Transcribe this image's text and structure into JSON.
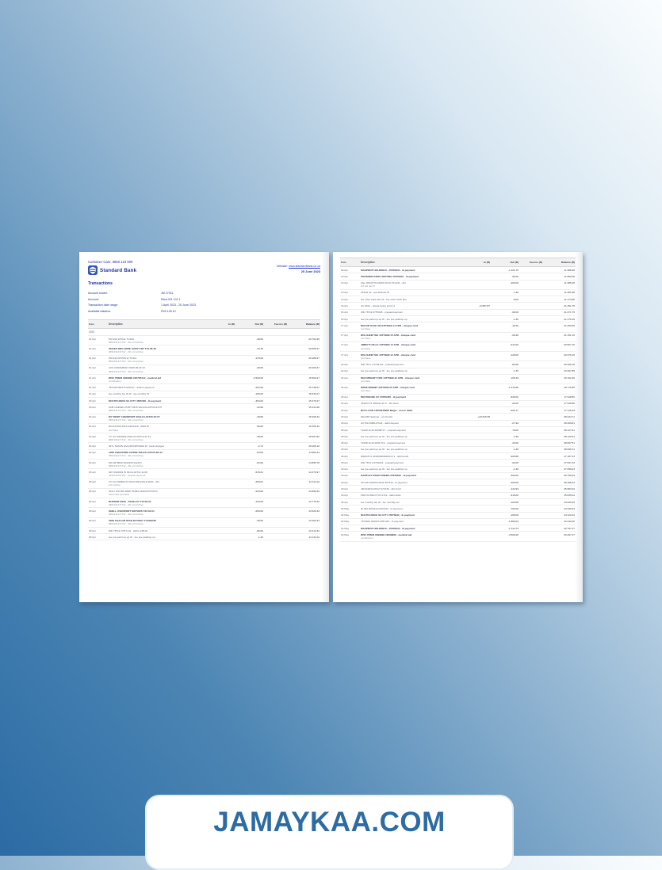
{
  "watermark": {
    "text": "JAMAYKAA.COM",
    "color": "#2d6ca3"
  },
  "statement": {
    "customer_care": "Customer Care: 0860 123 000",
    "bank_name": "Standard Bank",
    "brand_blue": "#1f2f9e",
    "website_label": "Website:",
    "website_url": "www.standardbank.co.za",
    "statement_date": "25 June 2023",
    "section_title": "Transactions",
    "summary": [
      {
        "label": "Account holder:",
        "value": "JM 27011"
      },
      {
        "label": "Account:",
        "value": "Mica 001 101 1"
      },
      {
        "label": "Transaction date range:",
        "value": "1 April 2023 - 25 June 2023"
      },
      {
        "label": "Available balance:",
        "value": "R49 128.10"
      }
    ],
    "columns": {
      "date": "Date",
      "description": "Description",
      "in": "In (R)",
      "out": "Out (R)",
      "fees": "Fee ins (R)",
      "balance": "Balance (R)"
    },
    "year_marker": "2023",
    "pages": [
      {
        "rows": [
          {
            "date": "01 Apr",
            "desc": "PAY910 W7041 T/1910",
            "ref": "0861231171712 - dbt ord archive",
            "in": "",
            "out": "-48.00",
            "fees": "",
            "balance": "20 702.45",
            "bold": false
          },
          {
            "date": "01 Apr",
            "desc": "SHOES WELCOME CONV CNT T13.38.49",
            "ref": "0861231171712 - dbt ord archive",
            "in": "",
            "out": "-44.18",
            "fees": "",
            "balance": "20 658.27",
            "bold": true
          },
          {
            "date": "01 Apr",
            "desc": "PAY211 PAYMA W T/1111",
            "ref": "0861231171712 - dbt ord archive",
            "in": "",
            "out": "-170.00",
            "fees": "",
            "balance": "20 488.27",
            "bold": false
          },
          {
            "date": "01 Apr",
            "desc": "AVC UNIMARKET 0915 09:42:10",
            "ref": "0861231171712 - dbt ord archive",
            "in": "",
            "out": "-28.00",
            "fees": "",
            "balance": "20 460.27",
            "bold": false
          },
          {
            "date": "01 Apr",
            "desc": "DISC PREM 9099999 190787312 - medical aid",
            "ref": "contribution",
            "in": "",
            "out": "-4 500.00",
            "fees": "",
            "balance": "15 960.27",
            "bold": true
          },
          {
            "date": "01 Apr",
            "desc": "787128 090173 029747 - airtime payment",
            "ref": "",
            "in": "",
            "out": "-222.00",
            "fees": "",
            "balance": "15 738.27",
            "bold": false
          },
          {
            "date": "01 Apr",
            "desc": "fee monthly fee W W - fee monthly W",
            "ref": "",
            "in": "",
            "out": "-105.00",
            "fees": "",
            "balance": "15 633.27",
            "bold": false
          },
          {
            "date": "03 Apr",
            "desc": "MULTICHOICE SA CITY 4605400 - ib payment",
            "ref": "",
            "in": "",
            "out": "-354.00",
            "fees": "",
            "balance": "15 279.27",
            "bold": true
          },
          {
            "date": "03 Apr",
            "desc": "SUB UNIFIED PORT 0915 2019-04-03T20:43:07",
            "ref": "0861231171712 - dbt ord archive",
            "in": "",
            "out": "-44.99",
            "fees": "",
            "balance": "15 234.28",
            "bold": false
          },
          {
            "date": "04 Apr",
            "desc": "MY DEBIT CHEWPORT 2019-04-04T20:43:07",
            "ref": "0861231171712 - dbt ord archive",
            "in": "",
            "out": "-28.86",
            "fees": "",
            "balance": "15 205.42",
            "bold": true
          },
          {
            "date": "04 Apr",
            "desc": "RG110 068 4410-249-0419 - 0915 W",
            "ref": "purchase",
            "in": "",
            "out": "-99.00",
            "fees": "",
            "balance": "15 106.42",
            "bold": false
          },
          {
            "date": "04 Apr",
            "desc": "TV LIC 0919090 2019-04-04T14:12:11",
            "ref": "0861231171712 - dbt ord archive",
            "in": "",
            "out": "-38.60",
            "fees": "",
            "balance": "15 067.82",
            "bold": false
          },
          {
            "date": "04 Apr",
            "desc": "INTL TRANS FAAU105487/9400 W - bank charges",
            "ref": "",
            "in": "",
            "out": "-2.72",
            "fees": "",
            "balance": "15 065.10",
            "bold": false
          },
          {
            "date": "04 Apr",
            "desc": "1008 CHECKERS CNTRE 2019-04-04T20:48:44",
            "ref": "0861231171712 - dbt ord archive",
            "in": "",
            "out": "-84.66",
            "fees": "",
            "balance": "14 980.44",
            "bold": true
          },
          {
            "date": "04 Apr",
            "desc": "MC 0879000 09443/07142107",
            "ref": "0861231171712 - dbt ord archive",
            "in": "",
            "out": "-84.66",
            "fees": "",
            "balance": "14 895.78",
            "bold": false
          },
          {
            "date": "05 Apr",
            "desc": "GPI 0494049 W 09-04-04T11:12:09",
            "ref": "4199722707101 - deposit payment",
            "in": "",
            "out": "-515.81",
            "fees": "",
            "balance": "14 379.97",
            "bold": false
          },
          {
            "date": "05 Apr",
            "desc": "TV LIC 090904 07:04:04 #9121012/10/11 - dbt",
            "ref": "ord archive",
            "in": "",
            "out": "-265.81",
            "fees": "",
            "balance": "14 114.16",
            "bold": false
          },
          {
            "date": "05 Apr",
            "desc": "ONLY FOODS 9090 70/040 4199722707070 -",
            "ref": "debit card purchase",
            "in": "",
            "out": "-223.82",
            "fees": "",
            "balance": "13 890.34",
            "bold": false
          },
          {
            "date": "05 Apr",
            "desc": "BURGER KING - PAVILLIO T19:04:01",
            "ref": "0861231171712 - dbt ord archive",
            "in": "",
            "out": "-120.00",
            "fees": "",
            "balance": "13 770.34",
            "bold": true
          },
          {
            "date": "05 Apr",
            "desc": "SHELL OVERPORT MOTORS T20:34:01",
            "ref": "0861231171712 - dbt ord archive",
            "in": "",
            "out": "-250.00",
            "fees": "",
            "balance": "13 520.34",
            "bold": true
          },
          {
            "date": "05 Apr",
            "desc": "0008 CHALOR STAR DAYWAY TUCKEND",
            "ref": "0861231171712 - dbt ord archive",
            "in": "",
            "out": "-28.00",
            "fees": "",
            "balance": "13 492.34",
            "bold": true
          },
          {
            "date": "08 Apr",
            "desc": "WD 7871C 075-0-01 - #101 0 #8-#1",
            "ref": "",
            "in": "",
            "out": "-80.00",
            "fees": "",
            "balance": "13 412.34",
            "bold": false
          },
          {
            "date": "08 Apr",
            "desc": "fee pre-paid top-up W - fee pre-paid/top up",
            "ref": "",
            "in": "",
            "out": "-1.30",
            "fees": "",
            "balance": "13 411.04",
            "bold": false
          }
        ]
      },
      {
        "rows": [
          {
            "date": "09 Apr",
            "desc": "MAXPROP HOLDINGS - #567894# - ib payment",
            "ref": "",
            "in": "",
            "out": "-1 422.76",
            "fees": "",
            "balance": "11 988.28",
            "bold": true
          },
          {
            "date": "10 Apr",
            "desc": "CROSSDICATED HOSTING #567894# - ib payment",
            "ref": "",
            "in": "",
            "out": "-99.00",
            "fees": "",
            "balance": "11 889.28",
            "bold": true
          },
          {
            "date": "10 Apr",
            "desc": "Also 0644/1719 0915 09:10 4714/11 - dbt",
            "ref": "ord del del W",
            "in": "",
            "out": "-400.00",
            "fees": "",
            "balance": "11 489.28",
            "bold": false
          },
          {
            "date": "13 Apr",
            "desc": "021111 W - aut abstract W",
            "ref": "",
            "in": "",
            "out": "-7.40",
            "fees": "",
            "balance": "11 481.88",
            "bold": false
          },
          {
            "date": "13 Apr",
            "desc": "fee other bank abs W - fee other bank abs",
            "ref": "",
            "in": "",
            "out": "-8.00",
            "fees": "",
            "balance": "11 473.88",
            "bold": false
          },
          {
            "date": "16 Apr",
            "desc": "UC 0911 - rebate being sprint 4",
            "ref": "",
            "in": "+9 887.87",
            "out": "",
            "fees": "",
            "balance": "21 361.75",
            "bold": false
          },
          {
            "date": "16 Apr",
            "desc": "WD 7871k 9757098 - prepaid payment",
            "ref": "",
            "in": "",
            "out": "-90.00",
            "fees": "",
            "balance": "21 271.75",
            "bold": false
          },
          {
            "date": "16 Apr",
            "desc": "fee pre-paid top-up W - fee pre-paid/top up",
            "ref": "",
            "in": "",
            "out": "-1.30",
            "fees": "",
            "balance": "21 270.45",
            "bold": false
          },
          {
            "date": "17 Apr",
            "desc": "DECOR SAVE 001445*6999 14 APR - cheque card",
            "ref": "purchase",
            "in": "",
            "out": "-19.90",
            "fees": "",
            "balance": "21 250.55",
            "bold": true
          },
          {
            "date": "17 Apr",
            "desc": "DIS-CHEM THE 445*6999 15 APR - cheque card",
            "ref": "purchase",
            "in": "",
            "out": "-99.40",
            "fees": "",
            "balance": "21 151.15",
            "bold": true
          },
          {
            "date": "17 Apr",
            "desc": "JIMMY'S KILLE 445*6999 14 APR - cheque card",
            "ref": "purchase",
            "in": "",
            "out": "-644.00",
            "fees": "",
            "balance": "20 507.15",
            "bold": true
          },
          {
            "date": "17 Apr",
            "desc": "DIS-CHEM THE 445*6999 12 APR - cheque card",
            "ref": "purchase",
            "in": "",
            "out": "-128.00",
            "fees": "",
            "balance": "20 379.15",
            "bold": true
          },
          {
            "date": "22 Apr",
            "desc": "WD 7871 2 0752121 - prepaid payment",
            "ref": "",
            "in": "",
            "out": "-80.00",
            "fees": "",
            "balance": "20 299.15",
            "bold": false
          },
          {
            "date": "22 Apr",
            "desc": "fee pre-paid top-up W - fee pre-paid/top up",
            "ref": "",
            "in": "",
            "out": "-1.30",
            "fees": "",
            "balance": "20 297.85",
            "bold": false
          },
          {
            "date": "24 Apr",
            "desc": "DECORMART CRE 445*6999 22 APR - cheque card",
            "ref": "purchase",
            "in": "",
            "out": "-105.49",
            "fees": "",
            "balance": "20 192.36",
            "bold": true
          },
          {
            "date": "25 Apr",
            "desc": "WORLDREMIT 445*6999 25 APR - cheque card",
            "ref": "purchase",
            "in": "",
            "out": "-1 415.86",
            "fees": "",
            "balance": "18 776.50",
            "bold": true
          },
          {
            "date": "25 Apr",
            "desc": "DESTINODE CC #6789456 - ib payment",
            "ref": "",
            "in": "",
            "out": "-828.00",
            "fees": "",
            "balance": "17 948.50",
            "bold": true
          },
          {
            "date": "25 Apr",
            "desc": "4444C171 404441 4C 0 - dbt order",
            "ref": "",
            "in": "",
            "out": "-29.00",
            "fees": "",
            "balance": "17 919.50",
            "bold": false
          },
          {
            "date": "26 Apr",
            "desc": "RCS LOAN 10000078900 Magis - assoc debit",
            "ref": "",
            "in": "",
            "out": "-500.17",
            "fees": "",
            "balance": "17 419.33",
            "bold": true
          },
          {
            "date": "26 Apr",
            "desc": "Mid EMI Savings - excl funds",
            "ref": "",
            "in": "+20 815.38",
            "out": "",
            "fees": "",
            "balance": "38 234.71",
            "bold": false
          },
          {
            "date": "28 Apr",
            "desc": "ACT21C098127044 - debit deposit",
            "ref": "",
            "in": "",
            "out": "-27.90",
            "fees": "",
            "balance": "38 206.81",
            "bold": false
          },
          {
            "date": "28 Apr",
            "desc": "T2448 4C1C19090717 - prepaid payment",
            "ref": "",
            "in": "",
            "out": "-79.00",
            "fees": "",
            "balance": "38 127.81",
            "bold": false
          },
          {
            "date": "28 Apr",
            "desc": "fee pre-paid top-up W - fee pre-paid/top up",
            "ref": "",
            "in": "",
            "out": "-1.30",
            "fees": "",
            "balance": "38 126.51",
            "bold": false
          },
          {
            "date": "28 Apr",
            "desc": "T2448 4C1C1909 710 - prepaid payment",
            "ref": "",
            "in": "",
            "out": "-29.00",
            "fees": "",
            "balance": "38 097.51",
            "bold": false
          },
          {
            "date": "28 Apr",
            "desc": "fee pre-paid top-up W - fee pre-paid/top up",
            "ref": "",
            "in": "",
            "out": "-1.30",
            "fees": "",
            "balance": "38 096.21",
            "bold": false
          },
          {
            "date": "28 Apr",
            "desc": "#00047C1 010000000000C171 - debit debit",
            "ref": "",
            "in": "",
            "out": "-908.88",
            "fees": "",
            "balance": "37 187.33",
            "bold": false
          },
          {
            "date": "30 Apr",
            "desc": "WD 7874 2 0752021 - prepaid payment",
            "ref": "",
            "in": "",
            "out": "-90.00",
            "fees": "",
            "balance": "37 097.33",
            "bold": false
          },
          {
            "date": "30 Apr",
            "desc": "fee pre-paid top-up W - fee pre-paid/top up",
            "ref": "",
            "in": "",
            "out": "-1.30",
            "fees": "",
            "balance": "37 096.03",
            "bold": false
          },
          {
            "date": "30 Apr",
            "desc": "HARTLEY ROAD PREMA #567894# - ib payment",
            "ref": "",
            "in": "",
            "out": "-300.00",
            "fees": "",
            "balance": "36 796.03",
            "bold": true
          },
          {
            "date": "30 Apr",
            "desc": "ACT21C0440C10441 #67444 - ib payment",
            "ref": "",
            "in": "",
            "out": "-400.00",
            "fees": "",
            "balance": "36 396.03",
            "bold": false
          },
          {
            "date": "30 Apr",
            "desc": "4Rm048 0147417 074740 - dbt trnsfr",
            "ref": "",
            "in": "",
            "out": "-442.99",
            "fees": "",
            "balance": "35 953.04",
            "bold": false
          },
          {
            "date": "30 Apr",
            "desc": "W93 W #001717171712 - debit debit",
            "ref": "",
            "in": "",
            "out": "-918.00",
            "fees": "",
            "balance": "35 035.04",
            "bold": false
          },
          {
            "date": "30 Apr",
            "desc": "fee monthly fee W - fee monthly fee",
            "ref": "",
            "in": "",
            "out": "-105.00",
            "fees": "",
            "balance": "34 930.04",
            "bold": false
          },
          {
            "date": "02 May",
            "desc": "W 092 40041414 #67444 - ib payment",
            "ref": "",
            "in": "",
            "out": "-700.00",
            "fees": "",
            "balance": "34 230.04",
            "bold": false
          },
          {
            "date": "02 May",
            "desc": "MULTICHOICE SA CITY #567894# - ib payment",
            "ref": "",
            "in": "",
            "out": "-108.00",
            "fees": "",
            "balance": "34 122.04",
            "bold": true
          },
          {
            "date": "02 May",
            "desc": "7974844 0940474 #67444 - ib payment",
            "ref": "",
            "in": "",
            "out": "-1 880.04",
            "fees": "",
            "balance": "32 242.00",
            "bold": false
          },
          {
            "date": "02 May",
            "desc": "MAXPROP HOLDINGS - #567894# - ib payment",
            "ref": "",
            "in": "",
            "out": "-1 444.73",
            "fees": "",
            "balance": "30 797.27",
            "bold": true
          },
          {
            "date": "02 May",
            "desc": "DISC PREM 9099999 19099999 - medical aid",
            "ref": "contribution",
            "in": "",
            "out": "-4 500.00",
            "fees": "",
            "balance": "26 297.27",
            "bold": true
          }
        ]
      }
    ]
  }
}
